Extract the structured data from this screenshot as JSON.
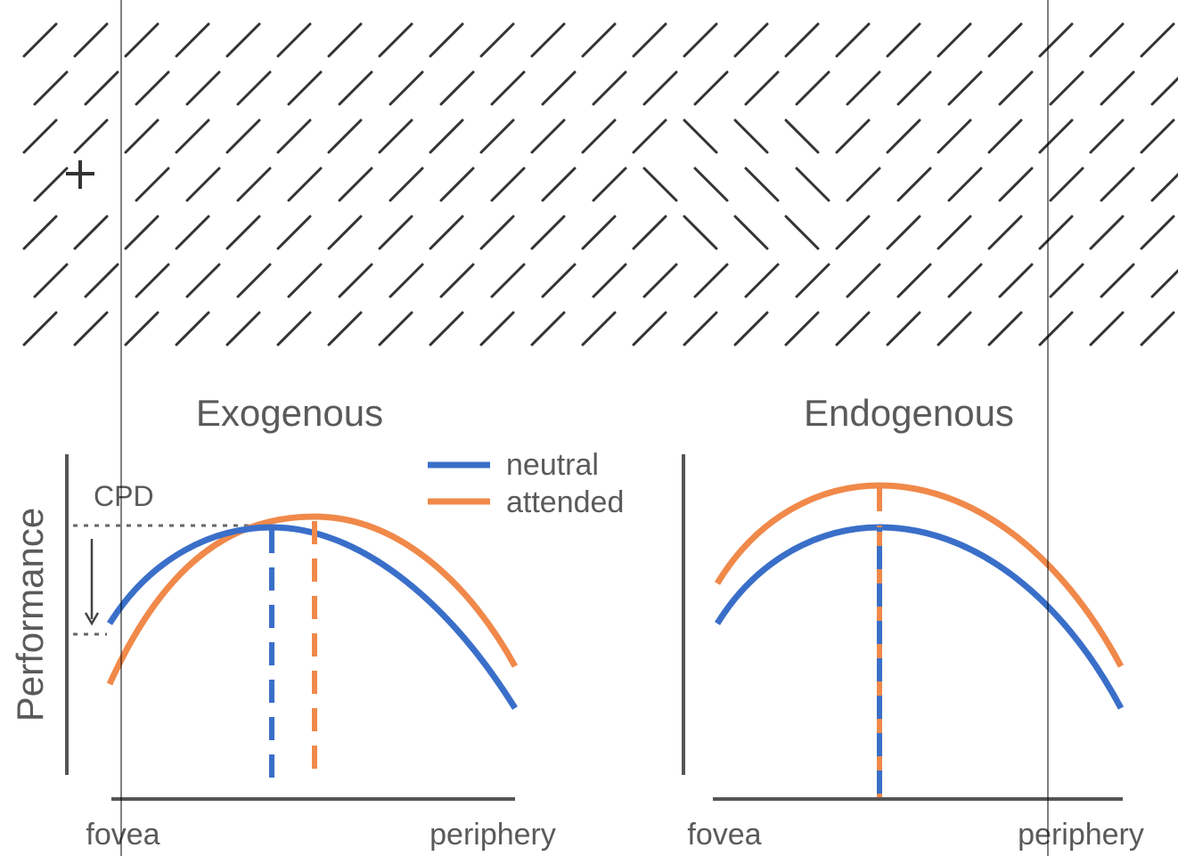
{
  "panels": [
    {
      "title": "Exogenous",
      "y_label": "Performance",
      "x_start": "fovea",
      "x_end": "periphery",
      "annotation": "CPD",
      "legend": [
        "neutral",
        "attended"
      ]
    },
    {
      "title": "Endogenous",
      "x_start": "fovea",
      "x_end": "periphery"
    }
  ]
}
